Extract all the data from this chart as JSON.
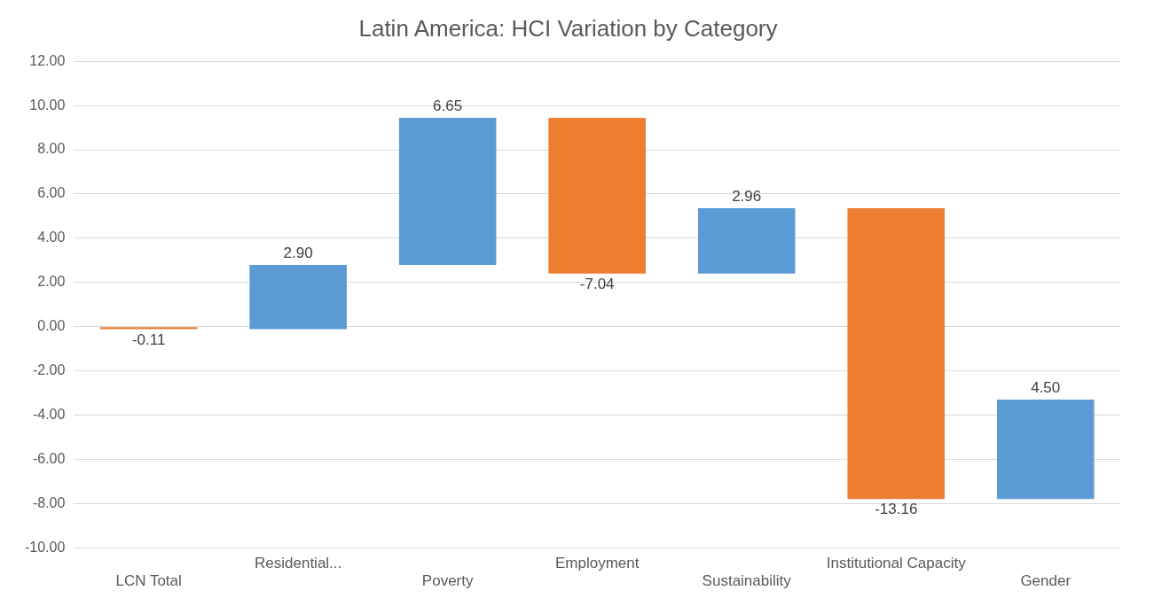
{
  "chart_data": {
    "type": "bar",
    "title": "Latin America: HCI Variation by Category",
    "categories": [
      "LCN Total",
      "Residential...",
      "Poverty",
      "Employment",
      "Sustainability",
      "Institutional Capacity",
      "Gender"
    ],
    "values": [
      -0.11,
      2.9,
      6.65,
      -7.04,
      2.96,
      -13.16,
      4.5
    ],
    "base": [
      0,
      -0.11,
      2.79,
      9.44,
      2.4,
      5.36,
      -7.8
    ],
    "colors": [
      "#ed7d31",
      "#5b9bd5",
      "#5b9bd5",
      "#ed7d31",
      "#5b9bd5",
      "#ed7d31",
      "#5b9bd5"
    ],
    "value_labels": [
      "-0.11",
      "2.90",
      "6.65",
      "-7.04",
      "2.96",
      "-13.16",
      "4.50"
    ],
    "ylim": [
      -10,
      12
    ],
    "yticks": [
      {
        "value": -10,
        "label": "-10.00"
      },
      {
        "value": -8,
        "label": "-8.00"
      },
      {
        "value": -6,
        "label": "-6.00"
      },
      {
        "value": -4,
        "label": "-4.00"
      },
      {
        "value": -2,
        "label": "-2.00"
      },
      {
        "value": 0,
        "label": "0.00"
      },
      {
        "value": 2,
        "label": "2.00"
      },
      {
        "value": 4,
        "label": "4.00"
      },
      {
        "value": 6,
        "label": "6.00"
      },
      {
        "value": 8,
        "label": "8.00"
      },
      {
        "value": 10,
        "label": "10.00"
      },
      {
        "value": 12,
        "label": "12.00"
      }
    ],
    "grid": "y",
    "legend": false
  }
}
